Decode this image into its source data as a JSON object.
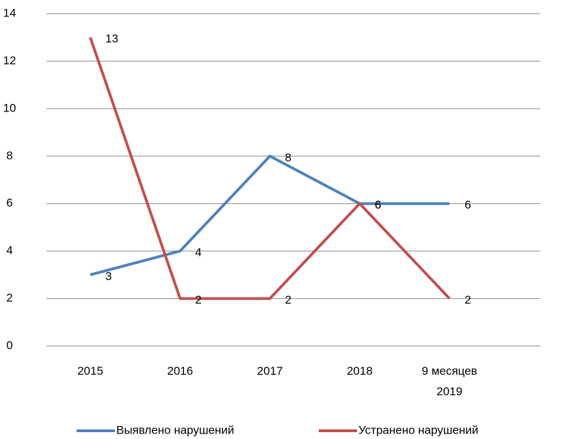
{
  "chart_data": {
    "type": "line",
    "categories": [
      "2015",
      "2016",
      "2017",
      "2018",
      "9 месяцев 2019"
    ],
    "series": [
      {
        "name": "Выявлено нарушений",
        "color": "#4f81bd",
        "values": [
          3,
          4,
          8,
          6,
          6
        ]
      },
      {
        "name": "Устранено нарушений",
        "color": "#c0504d",
        "values": [
          13,
          2,
          2,
          6,
          2
        ]
      }
    ],
    "ylim": [
      0,
      14
    ],
    "yticks": [
      0,
      2,
      4,
      6,
      8,
      10,
      12,
      14
    ],
    "grid": true,
    "legend": "bottom"
  }
}
